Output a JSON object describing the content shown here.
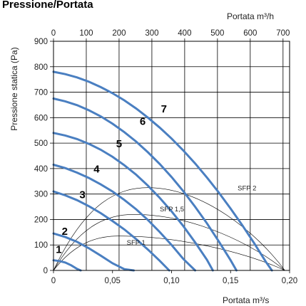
{
  "chart_data": {
    "type": "line",
    "title": "Pressione/Portata",
    "xlabel": "Portata m³/s",
    "ylabel": "Pressione statica (Pa)",
    "x2label": "Portata m³/h",
    "xlim": [
      0,
      0.2
    ],
    "ylim": [
      0,
      900
    ],
    "x2lim": [
      0,
      720
    ],
    "x_ticks": [
      "0",
      "0,05",
      "0,10",
      "0,15",
      "0,20"
    ],
    "x_tick_values": [
      0,
      0.05,
      0.1,
      0.15,
      0.2
    ],
    "x2_ticks": [
      "0",
      "100",
      "200",
      "300",
      "400",
      "500",
      "600",
      "700"
    ],
    "x2_tick_values": [
      0,
      100,
      200,
      300,
      400,
      500,
      600,
      700
    ],
    "y_ticks": [
      "0",
      "100",
      "200",
      "300",
      "400",
      "500",
      "600",
      "700",
      "800",
      "900"
    ],
    "y_tick_values": [
      0,
      100,
      200,
      300,
      400,
      500,
      600,
      700,
      800,
      900
    ],
    "grid": true,
    "series": [
      {
        "name": "1",
        "points": [
          [
            0,
            40
          ],
          [
            0.005,
            37
          ],
          [
            0.01,
            31
          ],
          [
            0.015,
            20
          ],
          [
            0.02,
            6
          ],
          [
            0.023,
            0
          ]
        ]
      },
      {
        "name": "2",
        "points": [
          [
            0,
            145
          ],
          [
            0.01,
            131
          ],
          [
            0.02,
            112
          ],
          [
            0.03,
            87
          ],
          [
            0.04,
            58
          ],
          [
            0.05,
            28
          ],
          [
            0.06,
            5
          ],
          [
            0.068,
            0
          ]
        ]
      },
      {
        "name": "3",
        "points": [
          [
            0,
            310
          ],
          [
            0.01,
            295
          ],
          [
            0.02,
            276
          ],
          [
            0.03,
            252
          ],
          [
            0.04,
            225
          ],
          [
            0.05,
            194
          ],
          [
            0.06,
            161
          ],
          [
            0.07,
            123
          ],
          [
            0.08,
            82
          ],
          [
            0.09,
            38
          ],
          [
            0.098,
            0
          ]
        ]
      },
      {
        "name": "4",
        "points": [
          [
            0,
            415
          ],
          [
            0.01,
            402
          ],
          [
            0.02,
            384
          ],
          [
            0.03,
            363
          ],
          [
            0.04,
            338
          ],
          [
            0.05,
            310
          ],
          [
            0.06,
            277
          ],
          [
            0.07,
            240
          ],
          [
            0.08,
            198
          ],
          [
            0.09,
            151
          ],
          [
            0.1,
            100
          ],
          [
            0.11,
            45
          ],
          [
            0.12,
            0
          ]
        ]
      },
      {
        "name": "5",
        "points": [
          [
            0,
            540
          ],
          [
            0.01,
            530
          ],
          [
            0.02,
            516
          ],
          [
            0.03,
            497
          ],
          [
            0.04,
            474
          ],
          [
            0.05,
            446
          ],
          [
            0.06,
            413
          ],
          [
            0.07,
            376
          ],
          [
            0.08,
            333
          ],
          [
            0.09,
            285
          ],
          [
            0.1,
            232
          ],
          [
            0.11,
            174
          ],
          [
            0.12,
            110
          ],
          [
            0.13,
            42
          ],
          [
            0.135,
            0
          ]
        ]
      },
      {
        "name": "6",
        "points": [
          [
            0,
            675
          ],
          [
            0.01,
            664
          ],
          [
            0.02,
            649
          ],
          [
            0.03,
            629
          ],
          [
            0.04,
            605
          ],
          [
            0.05,
            576
          ],
          [
            0.06,
            543
          ],
          [
            0.07,
            506
          ],
          [
            0.08,
            464
          ],
          [
            0.09,
            418
          ],
          [
            0.1,
            367
          ],
          [
            0.11,
            311
          ],
          [
            0.12,
            250
          ],
          [
            0.13,
            185
          ],
          [
            0.14,
            114
          ],
          [
            0.15,
            40
          ],
          [
            0.155,
            0
          ]
        ]
      },
      {
        "name": "7",
        "points": [
          [
            0,
            780
          ],
          [
            0.01,
            771
          ],
          [
            0.02,
            758
          ],
          [
            0.03,
            741
          ],
          [
            0.04,
            720
          ],
          [
            0.05,
            696
          ],
          [
            0.06,
            668
          ],
          [
            0.07,
            636
          ],
          [
            0.08,
            600
          ],
          [
            0.09,
            561
          ],
          [
            0.1,
            518
          ],
          [
            0.11,
            471
          ],
          [
            0.12,
            420
          ],
          [
            0.13,
            365
          ],
          [
            0.14,
            306
          ],
          [
            0.15,
            243
          ],
          [
            0.16,
            177
          ],
          [
            0.17,
            107
          ],
          [
            0.18,
            33
          ],
          [
            0.185,
            0
          ]
        ]
      }
    ],
    "sfp_curves": [
      {
        "name": "SFP 1",
        "peak_x": 0.055,
        "peak_y": 135,
        "end_x": 0.196
      },
      {
        "name": "SFP 1,5",
        "peak_x": 0.068,
        "peak_y": 220,
        "end_x": 0.196
      },
      {
        "name": "SFP 2",
        "peak_x": 0.08,
        "peak_y": 325,
        "end_x": 0.196
      }
    ],
    "sfp_labels": [
      {
        "text": "SFP 1",
        "x": 0.062,
        "y": 100
      },
      {
        "text": "SFP 1,5",
        "x": 0.09,
        "y": 232
      },
      {
        "text": "SFP 2",
        "x": 0.156,
        "y": 315
      }
    ],
    "curve_labels": [
      {
        "text": "1",
        "x": 0.002,
        "y": 68
      },
      {
        "text": "2",
        "x": 0.007,
        "y": 140
      },
      {
        "text": "3",
        "x": 0.022,
        "y": 283
      },
      {
        "text": "4",
        "x": 0.034,
        "y": 384
      },
      {
        "text": "5",
        "x": 0.053,
        "y": 483
      },
      {
        "text": "6",
        "x": 0.073,
        "y": 572
      },
      {
        "text": "7",
        "x": 0.091,
        "y": 621
      }
    ]
  }
}
